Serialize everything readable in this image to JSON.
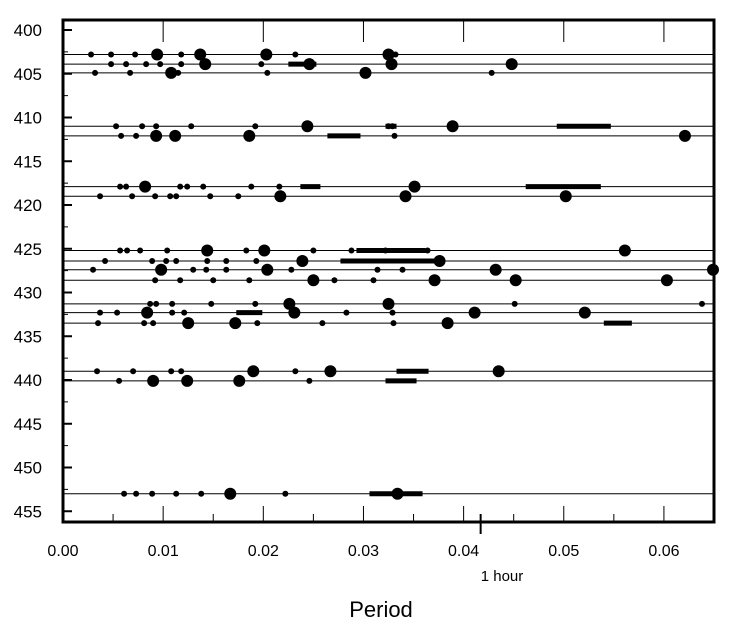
{
  "chart_data": {
    "type": "scatter",
    "title": "",
    "xlabel": "Period",
    "ylabel": "",
    "xlim": [
      0,
      0.065
    ],
    "ylim": [
      456,
      398
    ],
    "grid": false,
    "x_ticks": [
      0.0,
      0.01,
      0.02,
      0.03,
      0.04,
      0.05,
      0.06
    ],
    "x_tick_labels": [
      "0.00",
      "0.01",
      "0.02",
      "0.03",
      "0.04",
      "0.05",
      "0.06"
    ],
    "y_ticks": [
      400,
      405,
      410,
      415,
      420,
      425,
      430,
      435,
      440,
      445,
      450,
      455
    ],
    "y_tick_labels": [
      "400",
      "405",
      "410",
      "415",
      "420",
      "425",
      "430",
      "435",
      "440",
      "445",
      "450",
      "455"
    ],
    "annotation": {
      "text": "1 hour",
      "x": 0.0417
    },
    "rows": [
      {
        "y": 402.8,
        "points": [
          [
            0.0028,
            1
          ],
          [
            0.0048,
            1
          ],
          [
            0.0072,
            1
          ],
          [
            0.0094,
            3
          ],
          [
            0.0118,
            1
          ],
          [
            0.0137,
            3
          ],
          [
            0.0203,
            3
          ],
          [
            0.0232,
            1
          ],
          [
            0.0325,
            3
          ],
          [
            0.0332,
            1
          ]
        ],
        "bars": []
      },
      {
        "y": 403.9,
        "points": [
          [
            0.0048,
            1
          ],
          [
            0.0063,
            1
          ],
          [
            0.0083,
            1
          ],
          [
            0.0097,
            1
          ],
          [
            0.0118,
            1
          ],
          [
            0.0142,
            3
          ],
          [
            0.0198,
            1
          ],
          [
            0.0246,
            3
          ],
          [
            0.0328,
            3
          ],
          [
            0.0448,
            3
          ]
        ],
        "bars": [
          [
            0.0225,
            0.0253
          ]
        ]
      },
      {
        "y": 404.9,
        "points": [
          [
            0.0032,
            1
          ],
          [
            0.0067,
            1
          ],
          [
            0.0108,
            3
          ],
          [
            0.0115,
            1
          ],
          [
            0.0204,
            1
          ],
          [
            0.0302,
            3
          ],
          [
            0.0428,
            1
          ]
        ],
        "bars": []
      },
      {
        "y": 411.0,
        "points": [
          [
            0.0053,
            1
          ],
          [
            0.0079,
            1
          ],
          [
            0.0093,
            1
          ],
          [
            0.0128,
            1
          ],
          [
            0.0192,
            1
          ],
          [
            0.0244,
            3
          ],
          [
            0.0325,
            1
          ],
          [
            0.0329,
            1
          ],
          [
            0.0389,
            3
          ]
        ],
        "bars": [
          [
            0.0493,
            0.0547
          ],
          [
            0.0322,
            0.0333
          ]
        ]
      },
      {
        "y": 412.1,
        "points": [
          [
            0.0058,
            1
          ],
          [
            0.0073,
            1
          ],
          [
            0.0093,
            3
          ],
          [
            0.0112,
            3
          ],
          [
            0.0186,
            3
          ],
          [
            0.0331,
            1
          ],
          [
            0.0621,
            3
          ]
        ],
        "bars": [
          [
            0.0264,
            0.0297
          ]
        ]
      },
      {
        "y": 417.9,
        "points": [
          [
            0.0057,
            1
          ],
          [
            0.0063,
            1
          ],
          [
            0.0082,
            3
          ],
          [
            0.0117,
            1
          ],
          [
            0.0124,
            1
          ],
          [
            0.014,
            1
          ],
          [
            0.0188,
            1
          ],
          [
            0.0216,
            1
          ],
          [
            0.0351,
            3
          ]
        ],
        "bars": [
          [
            0.0237,
            0.0257
          ],
          [
            0.0462,
            0.0537
          ]
        ]
      },
      {
        "y": 419.0,
        "points": [
          [
            0.0037,
            1
          ],
          [
            0.0069,
            1
          ],
          [
            0.0092,
            1
          ],
          [
            0.0107,
            1
          ],
          [
            0.0113,
            1
          ],
          [
            0.0147,
            1
          ],
          [
            0.0175,
            1
          ],
          [
            0.0217,
            3
          ],
          [
            0.0342,
            3
          ],
          [
            0.0502,
            3
          ]
        ],
        "bars": []
      },
      {
        "y": 425.2,
        "points": [
          [
            0.0057,
            1
          ],
          [
            0.0064,
            1
          ],
          [
            0.0077,
            1
          ],
          [
            0.0104,
            1
          ],
          [
            0.0144,
            3
          ],
          [
            0.0183,
            1
          ],
          [
            0.0201,
            3
          ],
          [
            0.025,
            1
          ],
          [
            0.0288,
            1
          ],
          [
            0.0322,
            1
          ],
          [
            0.0364,
            1
          ],
          [
            0.0561,
            3
          ]
        ],
        "bars": [
          [
            0.0293,
            0.0362
          ]
        ]
      },
      {
        "y": 426.4,
        "points": [
          [
            0.0042,
            1
          ],
          [
            0.0089,
            1
          ],
          [
            0.0103,
            1
          ],
          [
            0.0113,
            1
          ],
          [
            0.0144,
            1
          ],
          [
            0.0163,
            1
          ],
          [
            0.0193,
            1
          ],
          [
            0.0239,
            3
          ],
          [
            0.0376,
            3
          ]
        ],
        "bars": [
          [
            0.0277,
            0.0371
          ]
        ]
      },
      {
        "y": 427.4,
        "points": [
          [
            0.003,
            1
          ],
          [
            0.0098,
            3
          ],
          [
            0.013,
            1
          ],
          [
            0.0143,
            1
          ],
          [
            0.0163,
            1
          ],
          [
            0.0204,
            3
          ],
          [
            0.0228,
            1
          ],
          [
            0.0314,
            1
          ],
          [
            0.0339,
            1
          ],
          [
            0.0432,
            3
          ],
          [
            0.0649,
            3
          ]
        ],
        "bars": []
      },
      {
        "y": 428.6,
        "points": [
          [
            0.0092,
            1
          ],
          [
            0.0117,
            1
          ],
          [
            0.015,
            1
          ],
          [
            0.0186,
            1
          ],
          [
            0.025,
            3
          ],
          [
            0.0271,
            1
          ],
          [
            0.031,
            1
          ],
          [
            0.0371,
            3
          ],
          [
            0.0452,
            3
          ],
          [
            0.0603,
            3
          ]
        ],
        "bars": []
      },
      {
        "y": 431.3,
        "points": [
          [
            0.0087,
            1
          ],
          [
            0.0093,
            1
          ],
          [
            0.0109,
            1
          ],
          [
            0.0148,
            1
          ],
          [
            0.0192,
            1
          ],
          [
            0.0226,
            3
          ],
          [
            0.0325,
            3
          ],
          [
            0.0451,
            1
          ],
          [
            0.0638,
            1
          ]
        ],
        "bars": []
      },
      {
        "y": 432.3,
        "points": [
          [
            0.0037,
            1
          ],
          [
            0.0054,
            1
          ],
          [
            0.0084,
            3
          ],
          [
            0.0109,
            1
          ],
          [
            0.0121,
            1
          ],
          [
            0.0231,
            3
          ],
          [
            0.0283,
            1
          ],
          [
            0.0329,
            1
          ],
          [
            0.0411,
            3
          ],
          [
            0.0521,
            3
          ]
        ],
        "bars": [
          [
            0.0173,
            0.0199
          ]
        ]
      },
      {
        "y": 433.5,
        "points": [
          [
            0.0035,
            1
          ],
          [
            0.0081,
            1
          ],
          [
            0.009,
            1
          ],
          [
            0.0125,
            3
          ],
          [
            0.0172,
            3
          ],
          [
            0.0194,
            1
          ],
          [
            0.0259,
            1
          ],
          [
            0.033,
            1
          ],
          [
            0.0384,
            3
          ]
        ],
        "bars": [
          [
            0.054,
            0.0568
          ]
        ]
      },
      {
        "y": 439.0,
        "points": [
          [
            0.0034,
            1
          ],
          [
            0.007,
            1
          ],
          [
            0.0108,
            1
          ],
          [
            0.0118,
            1
          ],
          [
            0.019,
            3
          ],
          [
            0.0232,
            1
          ],
          [
            0.0267,
            3
          ],
          [
            0.0435,
            3
          ]
        ],
        "bars": [
          [
            0.0333,
            0.0365
          ]
        ]
      },
      {
        "y": 440.1,
        "points": [
          [
            0.0056,
            1
          ],
          [
            0.009,
            3
          ],
          [
            0.0124,
            3
          ],
          [
            0.0176,
            3
          ],
          [
            0.0246,
            1
          ]
        ],
        "bars": [
          [
            0.0322,
            0.0353
          ]
        ]
      },
      {
        "y": 453.0,
        "points": [
          [
            0.0061,
            1
          ],
          [
            0.0073,
            1
          ],
          [
            0.0089,
            1
          ],
          [
            0.0113,
            1
          ],
          [
            0.0138,
            1
          ],
          [
            0.0167,
            3
          ],
          [
            0.0222,
            1
          ],
          [
            0.0334,
            3
          ]
        ],
        "bars": [
          [
            0.0306,
            0.0359
          ]
        ]
      }
    ]
  }
}
